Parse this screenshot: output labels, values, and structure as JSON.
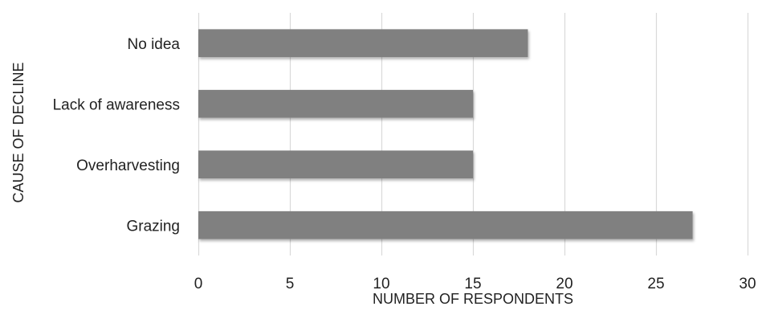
{
  "chart_data": {
    "type": "bar",
    "orientation": "horizontal",
    "categories": [
      "No idea",
      "Lack of awareness",
      "Overharvesting",
      "Grazing"
    ],
    "values": [
      18,
      15,
      15,
      27
    ],
    "xlabel": "NUMBER OF RESPONDENTS",
    "ylabel": "CAUSE OF DECLINE",
    "xlim": [
      0,
      30
    ],
    "xticks": [
      0,
      5,
      10,
      15,
      20,
      25,
      30
    ],
    "grid": true,
    "legend": "none",
    "bar_color": "#808080",
    "grid_color": "#d9d9d9"
  }
}
